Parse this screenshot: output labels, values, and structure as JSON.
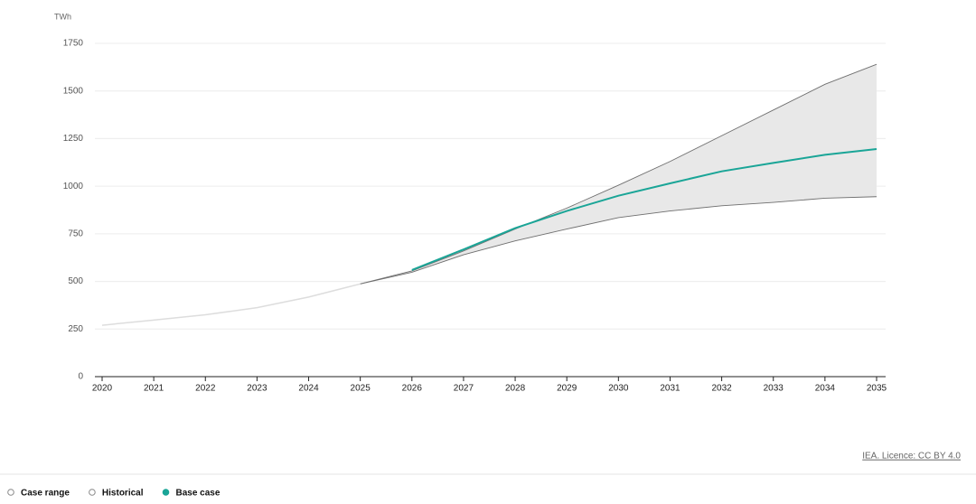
{
  "chart_data": {
    "type": "line",
    "y_unit": "TWh",
    "x": [
      2020,
      2021,
      2022,
      2023,
      2024,
      2025,
      2026,
      2027,
      2028,
      2029,
      2030,
      2031,
      2032,
      2033,
      2034,
      2035
    ],
    "xlim": [
      2020,
      2035
    ],
    "xticks": [
      2020,
      2021,
      2022,
      2023,
      2024,
      2025,
      2026,
      2027,
      2028,
      2029,
      2030,
      2031,
      2032,
      2033,
      2034,
      2035
    ],
    "ylim": [
      0,
      1750
    ],
    "yticks": [
      0,
      250,
      500,
      750,
      1000,
      1250,
      1500,
      1750
    ],
    "grid": true,
    "series": [
      {
        "name": "Case range",
        "kind": "range",
        "color": "#e8e8e8",
        "edge_color": "#6f6f6f",
        "low": [
          null,
          null,
          null,
          null,
          null,
          487,
          548,
          640,
          713,
          775,
          835,
          870,
          897,
          915,
          937,
          945
        ],
        "high": [
          null,
          null,
          null,
          null,
          null,
          487,
          555,
          660,
          775,
          885,
          1005,
          1130,
          1265,
          1400,
          1535,
          1640
        ]
      },
      {
        "name": "Historical",
        "color": "#dddddd",
        "values": [
          270,
          297,
          325,
          362,
          418,
          487,
          null,
          null,
          null,
          null,
          null,
          null,
          null,
          null,
          null,
          null
        ]
      },
      {
        "name": "Base case",
        "color": "#1aa597",
        "values": [
          null,
          null,
          null,
          null,
          null,
          null,
          560,
          668,
          780,
          870,
          950,
          1015,
          1078,
          1122,
          1165,
          1195
        ]
      }
    ],
    "source": "IEA. Licence: CC BY 4.0"
  }
}
